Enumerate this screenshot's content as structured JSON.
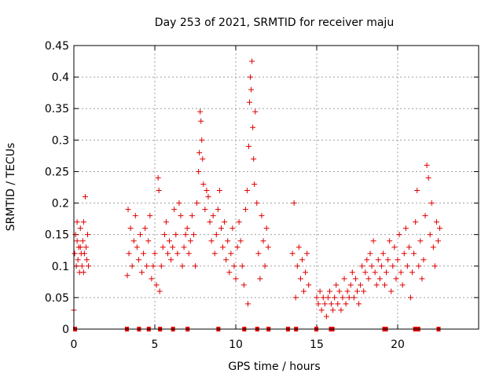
{
  "chart_data": {
    "type": "scatter",
    "title": "Day 253 of 2021, SRMTID for receiver maju",
    "xlabel": "GPS time / hours",
    "ylabel": "SRMTID / TECUs",
    "xlim": [
      0,
      25
    ],
    "ylim": [
      0,
      0.45
    ],
    "x_ticks": [
      0,
      5,
      10,
      15,
      20
    ],
    "x_tick_labels": [
      "0",
      "5",
      "10",
      "15",
      "20"
    ],
    "y_ticks": [
      0,
      0.05,
      0.1,
      0.15,
      0.2,
      0.25,
      0.3,
      0.35,
      0.4,
      0.45
    ],
    "y_tick_labels": [
      "0",
      "0.05",
      "0.1",
      "0.15",
      "0.2",
      "0.25",
      "0.3",
      "0.35",
      "0.4",
      "0.45"
    ],
    "grid": true,
    "marker": "+",
    "marker_color": "#e00000",
    "series": [
      {
        "name": "SRMTID",
        "points": [
          [
            0.0,
            0.03
          ],
          [
            0.05,
            0.12
          ],
          [
            0.1,
            0.15
          ],
          [
            0.15,
            0.1
          ],
          [
            0.2,
            0.14
          ],
          [
            0.25,
            0.11
          ],
          [
            0.3,
            0.13
          ],
          [
            0.35,
            0.09
          ],
          [
            0.4,
            0.16
          ],
          [
            0.45,
            0.12
          ],
          [
            0.5,
            0.1
          ],
          [
            0.55,
            0.14
          ],
          [
            0.6,
            0.17
          ],
          [
            0.65,
            0.12
          ],
          [
            0.7,
            0.21
          ],
          [
            0.75,
            0.13
          ],
          [
            0.8,
            0.11
          ],
          [
            0.85,
            0.15
          ],
          [
            0.9,
            0.1
          ],
          [
            0.2,
            0.17
          ],
          [
            0.4,
            0.13
          ],
          [
            0.6,
            0.09
          ],
          [
            3.3,
            0.085
          ],
          [
            3.35,
            0.19
          ],
          [
            3.4,
            0.12
          ],
          [
            3.5,
            0.16
          ],
          [
            3.6,
            0.1
          ],
          [
            3.7,
            0.14
          ],
          [
            3.8,
            0.18
          ],
          [
            3.9,
            0.13
          ],
          [
            4.0,
            0.11
          ],
          [
            4.1,
            0.15
          ],
          [
            4.2,
            0.09
          ],
          [
            4.3,
            0.12
          ],
          [
            4.4,
            0.16
          ],
          [
            4.5,
            0.1
          ],
          [
            4.6,
            0.14
          ],
          [
            4.7,
            0.18
          ],
          [
            4.8,
            0.08
          ],
          [
            4.9,
            0.1
          ],
          [
            5.0,
            0.12
          ],
          [
            5.1,
            0.07
          ],
          [
            5.2,
            0.24
          ],
          [
            5.25,
            0.22
          ],
          [
            5.3,
            0.06
          ],
          [
            5.4,
            0.1
          ],
          [
            5.5,
            0.13
          ],
          [
            5.6,
            0.15
          ],
          [
            5.7,
            0.17
          ],
          [
            5.8,
            0.12
          ],
          [
            5.9,
            0.14
          ],
          [
            6.0,
            0.11
          ],
          [
            6.1,
            0.13
          ],
          [
            6.2,
            0.19
          ],
          [
            6.3,
            0.15
          ],
          [
            6.4,
            0.12
          ],
          [
            6.5,
            0.2
          ],
          [
            6.6,
            0.18
          ],
          [
            6.7,
            0.1
          ],
          [
            6.8,
            0.13
          ],
          [
            6.9,
            0.15
          ],
          [
            7.0,
            0.16
          ],
          [
            7.1,
            0.12
          ],
          [
            7.2,
            0.14
          ],
          [
            7.3,
            0.18
          ],
          [
            7.4,
            0.15
          ],
          [
            7.5,
            0.1
          ],
          [
            7.6,
            0.2
          ],
          [
            7.7,
            0.25
          ],
          [
            7.75,
            0.28
          ],
          [
            7.8,
            0.345
          ],
          [
            7.85,
            0.33
          ],
          [
            7.9,
            0.3
          ],
          [
            7.95,
            0.27
          ],
          [
            8.0,
            0.23
          ],
          [
            8.1,
            0.19
          ],
          [
            8.2,
            0.22
          ],
          [
            8.3,
            0.21
          ],
          [
            8.4,
            0.17
          ],
          [
            8.5,
            0.14
          ],
          [
            8.6,
            0.18
          ],
          [
            8.7,
            0.12
          ],
          [
            8.8,
            0.15
          ],
          [
            8.9,
            0.19
          ],
          [
            9.0,
            0.22
          ],
          [
            9.1,
            0.16
          ],
          [
            9.2,
            0.13
          ],
          [
            9.3,
            0.17
          ],
          [
            9.4,
            0.11
          ],
          [
            9.5,
            0.14
          ],
          [
            9.6,
            0.09
          ],
          [
            9.7,
            0.12
          ],
          [
            9.8,
            0.16
          ],
          [
            9.9,
            0.1
          ],
          [
            10.0,
            0.08
          ],
          [
            10.1,
            0.13
          ],
          [
            10.2,
            0.17
          ],
          [
            10.3,
            0.14
          ],
          [
            10.4,
            0.1
          ],
          [
            10.5,
            0.07
          ],
          [
            10.6,
            0.19
          ],
          [
            10.7,
            0.22
          ],
          [
            10.75,
            0.04
          ],
          [
            10.8,
            0.29
          ],
          [
            10.85,
            0.36
          ],
          [
            10.9,
            0.4
          ],
          [
            10.95,
            0.38
          ],
          [
            11.0,
            0.425
          ],
          [
            11.05,
            0.32
          ],
          [
            11.1,
            0.27
          ],
          [
            11.15,
            0.23
          ],
          [
            11.2,
            0.345
          ],
          [
            11.3,
            0.2
          ],
          [
            11.4,
            0.12
          ],
          [
            11.5,
            0.08
          ],
          [
            11.6,
            0.18
          ],
          [
            11.7,
            0.14
          ],
          [
            11.8,
            0.1
          ],
          [
            11.9,
            0.16
          ],
          [
            12.0,
            0.13
          ],
          [
            13.5,
            0.12
          ],
          [
            13.6,
            0.2
          ],
          [
            13.7,
            0.05
          ],
          [
            13.8,
            0.1
          ],
          [
            13.9,
            0.13
          ],
          [
            14.0,
            0.08
          ],
          [
            14.1,
            0.11
          ],
          [
            14.2,
            0.06
          ],
          [
            14.3,
            0.09
          ],
          [
            14.4,
            0.12
          ],
          [
            14.5,
            0.07
          ],
          [
            15.0,
            0.05
          ],
          [
            15.1,
            0.04
          ],
          [
            15.2,
            0.06
          ],
          [
            15.3,
            0.03
          ],
          [
            15.4,
            0.05
          ],
          [
            15.5,
            0.04
          ],
          [
            15.6,
            0.02
          ],
          [
            15.7,
            0.05
          ],
          [
            15.8,
            0.06
          ],
          [
            15.9,
            0.04
          ],
          [
            16.0,
            0.03
          ],
          [
            16.1,
            0.05
          ],
          [
            16.2,
            0.07
          ],
          [
            16.3,
            0.04
          ],
          [
            16.4,
            0.06
          ],
          [
            16.5,
            0.03
          ],
          [
            16.6,
            0.05
          ],
          [
            16.7,
            0.08
          ],
          [
            16.8,
            0.04
          ],
          [
            16.9,
            0.06
          ],
          [
            17.0,
            0.05
          ],
          [
            17.1,
            0.07
          ],
          [
            17.2,
            0.09
          ],
          [
            17.3,
            0.05
          ],
          [
            17.4,
            0.08
          ],
          [
            17.5,
            0.06
          ],
          [
            17.6,
            0.04
          ],
          [
            17.7,
            0.07
          ],
          [
            17.8,
            0.1
          ],
          [
            17.9,
            0.06
          ],
          [
            18.0,
            0.09
          ],
          [
            18.1,
            0.11
          ],
          [
            18.2,
            0.08
          ],
          [
            18.3,
            0.12
          ],
          [
            18.4,
            0.1
          ],
          [
            18.5,
            0.14
          ],
          [
            18.6,
            0.09
          ],
          [
            18.7,
            0.07
          ],
          [
            18.8,
            0.11
          ],
          [
            18.9,
            0.08
          ],
          [
            19.0,
            0.1
          ],
          [
            19.1,
            0.12
          ],
          [
            19.2,
            0.07
          ],
          [
            19.3,
            0.09
          ],
          [
            19.4,
            0.11
          ],
          [
            19.5,
            0.14
          ],
          [
            19.6,
            0.06
          ],
          [
            19.7,
            0.1
          ],
          [
            19.8,
            0.13
          ],
          [
            19.9,
            0.08
          ],
          [
            20.0,
            0.11
          ],
          [
            20.1,
            0.15
          ],
          [
            20.2,
            0.09
          ],
          [
            20.3,
            0.07
          ],
          [
            20.4,
            0.12
          ],
          [
            20.5,
            0.16
          ],
          [
            20.6,
            0.1
          ],
          [
            20.7,
            0.13
          ],
          [
            20.8,
            0.05
          ],
          [
            20.9,
            0.09
          ],
          [
            21.0,
            0.12
          ],
          [
            21.1,
            0.17
          ],
          [
            21.2,
            0.22
          ],
          [
            21.3,
            0.1
          ],
          [
            21.4,
            0.14
          ],
          [
            21.5,
            0.08
          ],
          [
            21.6,
            0.11
          ],
          [
            21.7,
            0.18
          ],
          [
            21.8,
            0.26
          ],
          [
            21.9,
            0.24
          ],
          [
            22.0,
            0.15
          ],
          [
            22.1,
            0.2
          ],
          [
            22.2,
            0.13
          ],
          [
            22.3,
            0.1
          ],
          [
            22.4,
            0.17
          ],
          [
            22.5,
            0.14
          ],
          [
            22.6,
            0.16
          ]
        ]
      }
    ],
    "zero_points_x": [
      0.05,
      3.25,
      4.0,
      4.6,
      5.3,
      6.1,
      7.0,
      8.9,
      10.5,
      11.3,
      12.0,
      13.2,
      13.7,
      14.95,
      15.85,
      15.95,
      19.15,
      19.25,
      21.05,
      21.25,
      22.5
    ]
  }
}
